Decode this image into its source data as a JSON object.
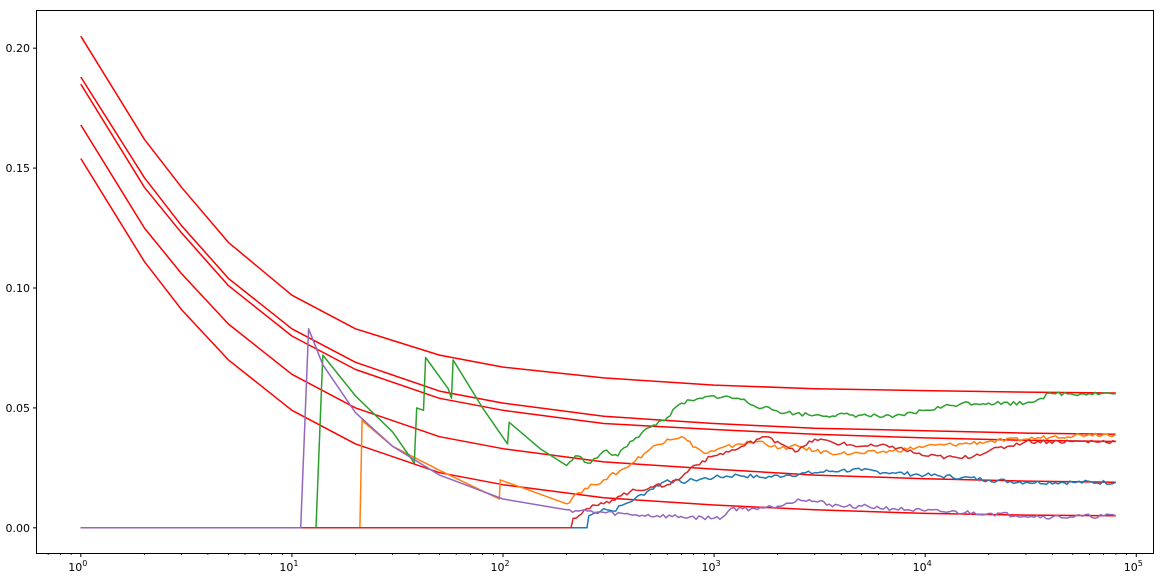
{
  "chart_data": {
    "type": "line",
    "title": "",
    "xlabel": "",
    "ylabel": "",
    "xscale": "log",
    "xlim": [
      0.62,
      120000
    ],
    "ylim": [
      -0.0105,
      0.2155
    ],
    "grid": false,
    "legend": "none",
    "x_ticks": [
      {
        "base": "10",
        "exp": "0",
        "value": 1
      },
      {
        "base": "10",
        "exp": "1",
        "value": 10
      },
      {
        "base": "10",
        "exp": "2",
        "value": 100
      },
      {
        "base": "10",
        "exp": "3",
        "value": 1000
      },
      {
        "base": "10",
        "exp": "4",
        "value": 10000
      },
      {
        "base": "10",
        "exp": "5",
        "value": 100000
      }
    ],
    "y_ticks": [
      {
        "label": "0.00",
        "value": 0.0
      },
      {
        "label": "0.05",
        "value": 0.05
      },
      {
        "label": "0.10",
        "value": 0.1
      },
      {
        "label": "0.15",
        "value": 0.15
      },
      {
        "label": "0.20",
        "value": 0.2
      }
    ],
    "bound_curves": [
      {
        "color": "#ff0000",
        "values": [
          [
            1,
            0.205
          ],
          [
            2,
            0.162
          ],
          [
            3,
            0.142
          ],
          [
            5,
            0.119
          ],
          [
            10,
            0.097
          ],
          [
            20,
            0.083
          ],
          [
            50,
            0.072
          ],
          [
            100,
            0.067
          ],
          [
            300,
            0.0625
          ],
          [
            1000,
            0.0595
          ],
          [
            3000,
            0.058
          ],
          [
            10000,
            0.0572
          ],
          [
            30000,
            0.0566
          ],
          [
            80000,
            0.0562
          ]
        ]
      },
      {
        "color": "#ff0000",
        "values": [
          [
            1,
            0.188
          ],
          [
            2,
            0.146
          ],
          [
            3,
            0.126
          ],
          [
            5,
            0.104
          ],
          [
            10,
            0.083
          ],
          [
            20,
            0.069
          ],
          [
            50,
            0.057
          ],
          [
            100,
            0.052
          ],
          [
            300,
            0.0465
          ],
          [
            1000,
            0.0435
          ],
          [
            3000,
            0.0415
          ],
          [
            10000,
            0.0405
          ],
          [
            30000,
            0.0395
          ],
          [
            80000,
            0.039
          ]
        ]
      },
      {
        "color": "#ff0000",
        "values": [
          [
            1,
            0.185
          ],
          [
            2,
            0.142
          ],
          [
            3,
            0.123
          ],
          [
            5,
            0.101
          ],
          [
            10,
            0.08
          ],
          [
            20,
            0.066
          ],
          [
            50,
            0.054
          ],
          [
            100,
            0.049
          ],
          [
            300,
            0.0435
          ],
          [
            1000,
            0.041
          ],
          [
            3000,
            0.039
          ],
          [
            10000,
            0.0375
          ],
          [
            30000,
            0.0365
          ],
          [
            80000,
            0.036
          ]
        ]
      },
      {
        "color": "#ff0000",
        "values": [
          [
            1,
            0.168
          ],
          [
            2,
            0.125
          ],
          [
            3,
            0.106
          ],
          [
            5,
            0.085
          ],
          [
            10,
            0.064
          ],
          [
            20,
            0.05
          ],
          [
            50,
            0.038
          ],
          [
            100,
            0.033
          ],
          [
            300,
            0.0275
          ],
          [
            1000,
            0.0245
          ],
          [
            3000,
            0.022
          ],
          [
            10000,
            0.0205
          ],
          [
            30000,
            0.0195
          ],
          [
            80000,
            0.019
          ]
        ]
      },
      {
        "color": "#ff0000",
        "values": [
          [
            1,
            0.154
          ],
          [
            2,
            0.111
          ],
          [
            3,
            0.091
          ],
          [
            5,
            0.07
          ],
          [
            10,
            0.049
          ],
          [
            20,
            0.035
          ],
          [
            50,
            0.023
          ],
          [
            100,
            0.018
          ],
          [
            300,
            0.0125
          ],
          [
            1000,
            0.0095
          ],
          [
            3000,
            0.0075
          ],
          [
            10000,
            0.006
          ],
          [
            30000,
            0.0053
          ],
          [
            80000,
            0.005
          ]
        ]
      }
    ],
    "series": [
      {
        "color": "#1f77b4",
        "values": [
          [
            1,
            0.0
          ],
          [
            250,
            0.0
          ],
          [
            255,
            0.005
          ],
          [
            300,
            0.008
          ],
          [
            330,
            0.007
          ],
          [
            380,
            0.01
          ],
          [
            420,
            0.012
          ],
          [
            500,
            0.016
          ],
          [
            600,
            0.02
          ],
          [
            700,
            0.019
          ],
          [
            800,
            0.02
          ],
          [
            1000,
            0.021
          ],
          [
            1300,
            0.022
          ],
          [
            1700,
            0.021
          ],
          [
            2200,
            0.022
          ],
          [
            3000,
            0.023
          ],
          [
            4000,
            0.024
          ],
          [
            5000,
            0.024
          ],
          [
            7000,
            0.023
          ],
          [
            10000,
            0.022
          ],
          [
            15000,
            0.021
          ],
          [
            20000,
            0.02
          ],
          [
            30000,
            0.019
          ],
          [
            50000,
            0.019
          ],
          [
            80000,
            0.019
          ]
        ]
      },
      {
        "color": "#ff7f0e",
        "values": [
          [
            1,
            0.0
          ],
          [
            21,
            0.0
          ],
          [
            21.5,
            0.045
          ],
          [
            22,
            0.044
          ],
          [
            30,
            0.034
          ],
          [
            50,
            0.024
          ],
          [
            96,
            0.012
          ],
          [
            97,
            0.02
          ],
          [
            130,
            0.016
          ],
          [
            200,
            0.01
          ],
          [
            220,
            0.014
          ],
          [
            270,
            0.018
          ],
          [
            300,
            0.02
          ],
          [
            380,
            0.025
          ],
          [
            500,
            0.033
          ],
          [
            600,
            0.037
          ],
          [
            700,
            0.038
          ],
          [
            900,
            0.031
          ],
          [
            1000,
            0.032
          ],
          [
            1300,
            0.035
          ],
          [
            1700,
            0.036
          ],
          [
            2000,
            0.033
          ],
          [
            2500,
            0.034
          ],
          [
            3000,
            0.032
          ],
          [
            4000,
            0.031
          ],
          [
            5000,
            0.031
          ],
          [
            7000,
            0.032
          ],
          [
            10000,
            0.034
          ],
          [
            15000,
            0.035
          ],
          [
            20000,
            0.036
          ],
          [
            30000,
            0.037
          ],
          [
            40000,
            0.038
          ],
          [
            60000,
            0.039
          ],
          [
            80000,
            0.039
          ]
        ]
      },
      {
        "color": "#2ca02c",
        "values": [
          [
            1,
            0.0
          ],
          [
            13,
            0.0
          ],
          [
            14,
            0.072
          ],
          [
            20,
            0.055
          ],
          [
            30,
            0.04
          ],
          [
            38,
            0.027
          ],
          [
            39,
            0.05
          ],
          [
            42,
            0.049
          ],
          [
            43,
            0.071
          ],
          [
            55,
            0.058
          ],
          [
            57,
            0.054
          ],
          [
            58,
            0.07
          ],
          [
            80,
            0.05
          ],
          [
            105,
            0.035
          ],
          [
            107,
            0.044
          ],
          [
            150,
            0.033
          ],
          [
            200,
            0.026
          ],
          [
            220,
            0.03
          ],
          [
            260,
            0.027
          ],
          [
            300,
            0.032
          ],
          [
            350,
            0.03
          ],
          [
            400,
            0.036
          ],
          [
            500,
            0.042
          ],
          [
            600,
            0.046
          ],
          [
            700,
            0.052
          ],
          [
            800,
            0.053
          ],
          [
            1000,
            0.055
          ],
          [
            1300,
            0.054
          ],
          [
            1700,
            0.05
          ],
          [
            2200,
            0.048
          ],
          [
            3000,
            0.047
          ],
          [
            5000,
            0.047
          ],
          [
            7000,
            0.046
          ],
          [
            10000,
            0.049
          ],
          [
            15000,
            0.052
          ],
          [
            20000,
            0.052
          ],
          [
            30000,
            0.052
          ],
          [
            40000,
            0.056
          ],
          [
            60000,
            0.056
          ],
          [
            80000,
            0.056
          ]
        ]
      },
      {
        "color": "#d62728",
        "values": [
          [
            1,
            0.0
          ],
          [
            210,
            0.0
          ],
          [
            215,
            0.004
          ],
          [
            250,
            0.008
          ],
          [
            300,
            0.01
          ],
          [
            350,
            0.013
          ],
          [
            400,
            0.015
          ],
          [
            500,
            0.017
          ],
          [
            600,
            0.018
          ],
          [
            700,
            0.021
          ],
          [
            800,
            0.026
          ],
          [
            1000,
            0.03
          ],
          [
            1300,
            0.033
          ],
          [
            1700,
            0.038
          ],
          [
            2000,
            0.036
          ],
          [
            2500,
            0.032
          ],
          [
            3000,
            0.037
          ],
          [
            4000,
            0.035
          ],
          [
            5000,
            0.034
          ],
          [
            7000,
            0.034
          ],
          [
            10000,
            0.03
          ],
          [
            15000,
            0.029
          ],
          [
            20000,
            0.032
          ],
          [
            30000,
            0.036
          ],
          [
            50000,
            0.036
          ],
          [
            80000,
            0.036
          ]
        ]
      },
      {
        "color": "#9467bd",
        "values": [
          [
            1,
            0.0
          ],
          [
            11,
            0.0
          ],
          [
            12,
            0.083
          ],
          [
            14,
            0.068
          ],
          [
            20,
            0.048
          ],
          [
            30,
            0.034
          ],
          [
            50,
            0.022
          ],
          [
            100,
            0.012
          ],
          [
            200,
            0.0075
          ],
          [
            400,
            0.0055
          ],
          [
            1000,
            0.004
          ],
          [
            1100,
            0.0045
          ],
          [
            1200,
            0.008
          ],
          [
            1500,
            0.008
          ],
          [
            2000,
            0.009
          ],
          [
            2500,
            0.012
          ],
          [
            3000,
            0.011
          ],
          [
            4000,
            0.009
          ],
          [
            5000,
            0.009
          ],
          [
            7000,
            0.008
          ],
          [
            10000,
            0.007
          ],
          [
            20000,
            0.006
          ],
          [
            40000,
            0.0045
          ],
          [
            80000,
            0.005
          ]
        ]
      }
    ]
  }
}
